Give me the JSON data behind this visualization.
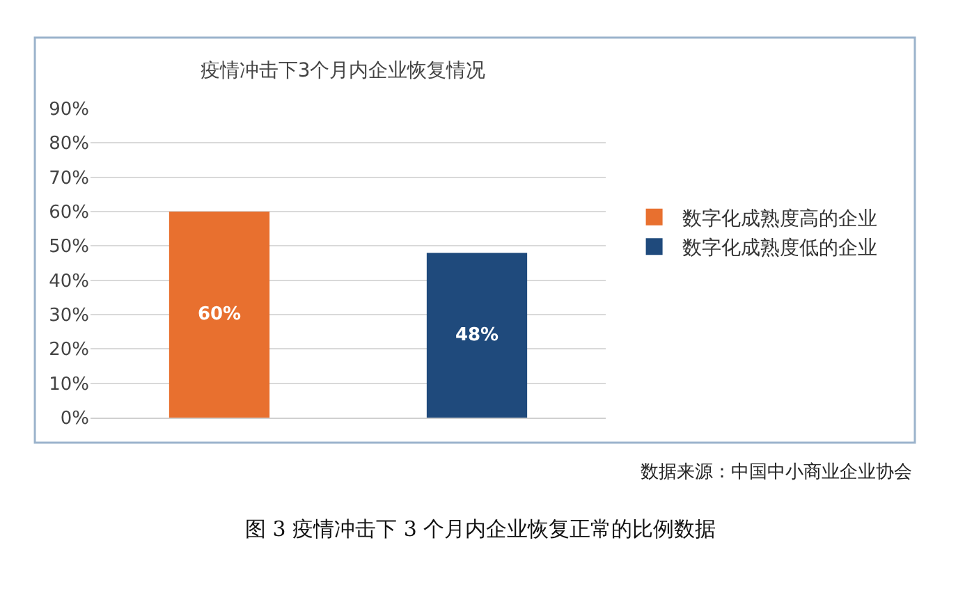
{
  "chart_data": {
    "type": "bar",
    "title": "疫情冲击下3个月内企业恢复情况",
    "categories": [
      null,
      null
    ],
    "series": [
      {
        "name": "数字化成熟度高的企业",
        "color": "#e8702f",
        "values": [
          60,
          null
        ]
      },
      {
        "name": "数字化成熟度低的企业",
        "color": "#1f4a7c",
        "values": [
          null,
          48
        ]
      }
    ],
    "ylim": [
      0,
      90
    ],
    "yticks": [
      {
        "value": 0,
        "label": "0%"
      },
      {
        "value": 10,
        "label": "10%"
      },
      {
        "value": 20,
        "label": "20%"
      },
      {
        "value": 30,
        "label": "30%"
      },
      {
        "value": 40,
        "label": "40%"
      },
      {
        "value": 50,
        "label": "50%"
      },
      {
        "value": 60,
        "label": "60%"
      },
      {
        "value": 70,
        "label": "70%"
      },
      {
        "value": 80,
        "label": "80%"
      },
      {
        "value": 90,
        "label": "90%"
      }
    ],
    "value_labels": [
      "60%",
      "48%"
    ],
    "grid": "y",
    "legend": "right",
    "annotations": [
      "数据来源：中国中小商业企业协会",
      "图 3 疫情冲击下 3 个月内企业恢复正常的比例数据"
    ]
  }
}
